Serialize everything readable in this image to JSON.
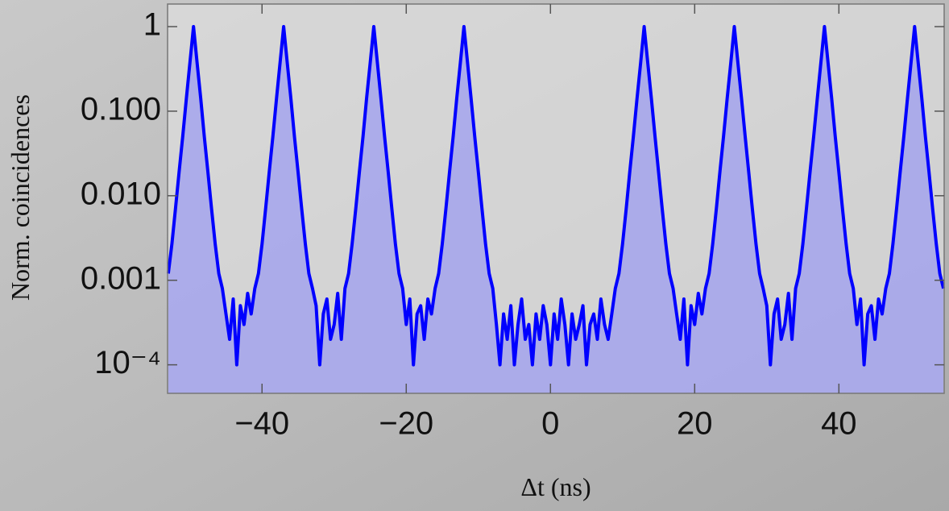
{
  "chart_data": {
    "type": "area",
    "y_label": "Norm. coincidences",
    "x_label": "Δt (ns)",
    "color": "#0000ff",
    "fill_color": "#9a9af2",
    "log_y": true,
    "xlim": [
      -53.1,
      54.6
    ],
    "ylim": [
      4.6e-05,
      1.85
    ],
    "xticks": [
      {
        "value": -40,
        "label": "−40"
      },
      {
        "value": -20,
        "label": "−20"
      },
      0,
      20,
      40
    ],
    "yticks": [
      1,
      {
        "value": 0.1,
        "label": "0.100"
      },
      {
        "value": 0.01,
        "label": "0.010"
      },
      0.001,
      {
        "value": 0.0001,
        "label": "10⁻⁴"
      }
    ],
    "x": [
      -53,
      -52.5,
      -52,
      -51.5,
      -51,
      -50.5,
      -50,
      -49.5,
      -49,
      -48.5,
      -48,
      -47.5,
      -47,
      -46.5,
      -46,
      -45.5,
      -45,
      -44.5,
      -44,
      -43.5,
      -43,
      -42.5,
      -42,
      -41.5,
      -41,
      -40.5,
      -40,
      -39.5,
      -39,
      -38.5,
      -38,
      -37.5,
      -37,
      -36.5,
      -36,
      -35.5,
      -35,
      -34.5,
      -34,
      -33.5,
      -33,
      -32.5,
      -32,
      -31.5,
      -31,
      -30.5,
      -30,
      -29.5,
      -29,
      -28.5,
      -28,
      -27.5,
      -27,
      -26.5,
      -26,
      -25.5,
      -25,
      -24.5,
      -24,
      -23.5,
      -23,
      -22.5,
      -22,
      -21.5,
      -21,
      -20.5,
      -20,
      -19.5,
      -19,
      -18.5,
      -18,
      -17.5,
      -17,
      -16.5,
      -16,
      -15.5,
      -15,
      -14.5,
      -14,
      -13.5,
      -13,
      -12.5,
      -12,
      -11.5,
      -11,
      -10.5,
      -10,
      -9.5,
      -9,
      -8.5,
      -8,
      -7.5,
      -7,
      -6.5,
      -6,
      -5.5,
      -5,
      -4.5,
      -4,
      -3.5,
      -3,
      -2.5,
      -2,
      -1.5,
      -1,
      -0.5,
      0,
      0.5,
      1,
      1.5,
      2,
      2.5,
      3,
      3.5,
      4,
      4.5,
      5,
      5.5,
      6,
      6.5,
      7,
      7.5,
      8,
      8.5,
      9,
      9.5,
      10,
      10.5,
      11,
      11.5,
      12,
      12.5,
      13,
      13.5,
      14,
      14.5,
      15,
      15.5,
      16,
      16.5,
      17,
      17.5,
      18,
      18.5,
      19,
      19.5,
      20,
      20.5,
      21,
      21.5,
      22,
      22.5,
      23,
      23.5,
      24,
      24.5,
      25,
      25.5,
      26,
      26.5,
      27,
      27.5,
      28,
      28.5,
      29,
      29.5,
      30,
      30.5,
      31,
      31.5,
      32,
      32.5,
      33,
      33.5,
      34,
      34.5,
      35,
      35.5,
      36,
      36.5,
      37,
      37.5,
      38,
      38.5,
      39,
      39.5,
      40,
      40.5,
      41,
      41.5,
      42,
      42.5,
      43,
      43.5,
      44,
      44.5,
      45,
      45.5,
      46,
      46.5,
      47,
      47.5,
      48,
      48.5,
      49,
      49.5,
      50,
      50.5,
      51,
      51.5,
      52,
      52.5,
      53,
      53.5,
      54,
      54.5
    ],
    "values": [
      0.0012,
      0.0027,
      0.007,
      0.019,
      0.05,
      0.14,
      0.37,
      1,
      0.37,
      0.14,
      0.05,
      0.019,
      0.007,
      0.0027,
      0.0012,
      0.0008,
      0.0004,
      0.0002,
      0.0006,
      0.0001,
      0.0005,
      0.0003,
      0.0007,
      0.0004,
      0.0008,
      0.0012,
      0.0027,
      0.007,
      0.019,
      0.05,
      0.14,
      0.37,
      1,
      0.37,
      0.14,
      0.05,
      0.019,
      0.007,
      0.0027,
      0.0012,
      0.0008,
      0.0005,
      0.0001,
      0.0004,
      0.0006,
      0.0002,
      0.0003,
      0.0007,
      0.0002,
      0.0008,
      0.0012,
      0.0027,
      0.007,
      0.019,
      0.05,
      0.14,
      0.37,
      1,
      0.37,
      0.14,
      0.05,
      0.019,
      0.007,
      0.0027,
      0.0012,
      0.0008,
      0.0003,
      0.0006,
      0.0001,
      0.0004,
      0.0005,
      0.0002,
      0.0006,
      0.0004,
      0.0008,
      0.0012,
      0.0027,
      0.007,
      0.019,
      0.05,
      0.14,
      0.37,
      1,
      0.37,
      0.14,
      0.05,
      0.019,
      0.007,
      0.0027,
      0.0012,
      0.0008,
      0.0003,
      0.0001,
      0.0004,
      0.0002,
      0.0005,
      0.0001,
      0.0003,
      0.0006,
      0.0002,
      0.0003,
      0.0001,
      0.0004,
      0.0002,
      0.0005,
      0.0003,
      0.0001,
      0.0004,
      0.0002,
      0.0006,
      0.0003,
      0.0001,
      0.0004,
      0.0002,
      0.0003,
      0.0005,
      0.0001,
      0.0003,
      0.0004,
      0.0002,
      0.0006,
      0.0003,
      0.0002,
      0.0004,
      0.0008,
      0.0012,
      0.0027,
      0.007,
      0.019,
      0.05,
      0.14,
      0.37,
      1,
      0.37,
      0.14,
      0.05,
      0.019,
      0.007,
      0.0027,
      0.0012,
      0.0008,
      0.0004,
      0.0002,
      0.0006,
      0.0001,
      0.0005,
      0.0003,
      0.0007,
      0.0004,
      0.0008,
      0.0012,
      0.0027,
      0.007,
      0.019,
      0.05,
      0.14,
      0.37,
      1,
      0.37,
      0.14,
      0.05,
      0.019,
      0.007,
      0.0027,
      0.0012,
      0.0008,
      0.0005,
      0.0001,
      0.0004,
      0.0006,
      0.0002,
      0.0003,
      0.0007,
      0.0002,
      0.0008,
      0.0012,
      0.0027,
      0.007,
      0.019,
      0.05,
      0.14,
      0.37,
      1,
      0.37,
      0.14,
      0.05,
      0.019,
      0.007,
      0.0027,
      0.0012,
      0.0008,
      0.0003,
      0.0006,
      0.0001,
      0.0004,
      0.0005,
      0.0002,
      0.0006,
      0.0004,
      0.0008,
      0.0012,
      0.0027,
      0.007,
      0.019,
      0.05,
      0.14,
      0.37,
      1,
      0.37,
      0.14,
      0.05,
      0.019,
      0.007,
      0.0027,
      0.0012,
      0.0008
    ]
  }
}
